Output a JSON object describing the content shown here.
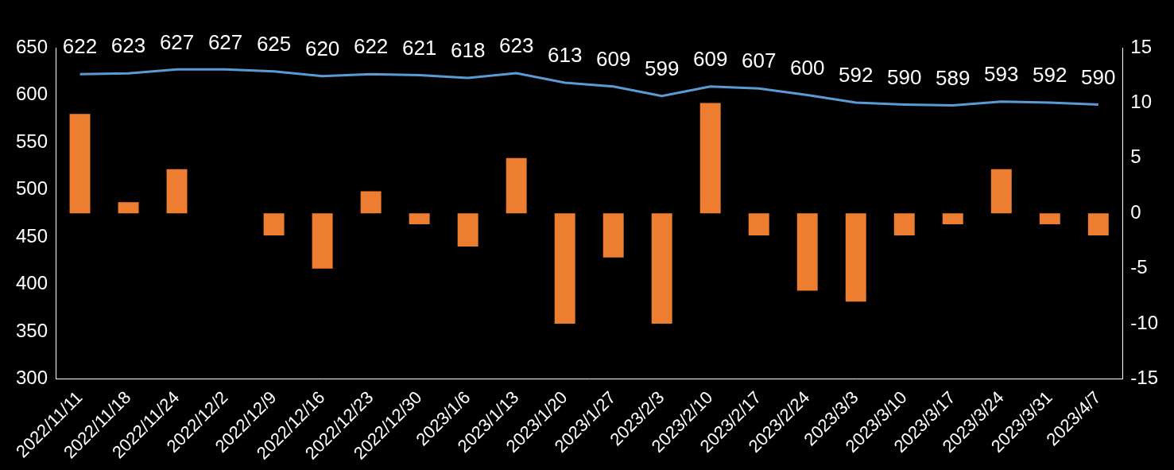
{
  "chart_data": {
    "type": "bar",
    "categories": [
      "2022/11/11",
      "2022/11/18",
      "2022/11/24",
      "2022/12/2",
      "2022/12/9",
      "2022/12/16",
      "2022/12/23",
      "2022/12/30",
      "2023/1/6",
      "2023/1/13",
      "2023/1/20",
      "2023/1/27",
      "2023/2/3",
      "2023/2/10",
      "2023/2/17",
      "2023/2/24",
      "2023/3/3",
      "2023/3/10",
      "2023/3/17",
      "2023/3/24",
      "2023/3/31",
      "2023/4/7"
    ],
    "series": [
      {
        "type": "bar",
        "color": "#ED7D31",
        "axis": "y2",
        "values": [
          9,
          1,
          4,
          0,
          -2,
          -5,
          2,
          -1,
          -3,
          5,
          -10,
          -4,
          -10,
          10,
          -2,
          -7,
          -8,
          -2,
          -1,
          4,
          -1,
          -2
        ]
      },
      {
        "type": "line",
        "color": "#5B9BD5",
        "axis": "y",
        "data_labels": true,
        "marker": "none",
        "values": [
          622,
          623,
          627,
          627,
          625,
          620,
          622,
          621,
          618,
          623,
          613,
          609,
          599,
          609,
          607,
          600,
          592,
          590,
          589,
          593,
          592,
          590
        ]
      }
    ],
    "ylim": [
      300,
      650
    ],
    "yticks": [
      300,
      350,
      400,
      450,
      500,
      550,
      600,
      650
    ],
    "y2lim": [
      -15,
      15
    ],
    "y2ticks": [
      -15,
      -10,
      -5,
      0,
      5,
      10,
      15
    ],
    "grid": false
  }
}
